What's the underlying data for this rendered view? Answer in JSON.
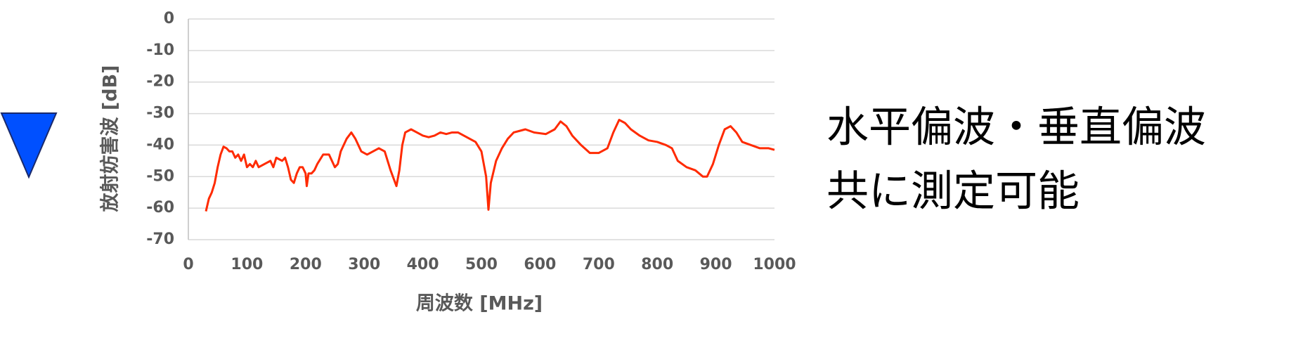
{
  "chart_data": {
    "type": "line",
    "xlabel": "周波数 [MHz]",
    "ylabel": "放射妨害波 [dB]",
    "xlim": [
      0,
      1000
    ],
    "xticks": [
      0,
      100,
      200,
      300,
      400,
      500,
      600,
      700,
      800,
      900,
      1000
    ],
    "ylim": [
      -70,
      0
    ],
    "yticks": [
      0,
      -10,
      -20,
      -30,
      -40,
      -50,
      -60,
      -70
    ],
    "grid": true,
    "annotations": [
      "水平偏波・垂直偏波",
      "共に測定可能"
    ],
    "series": [
      {
        "color": "#ff2a00",
        "x": [
          30,
          35,
          40,
          45,
          50,
          55,
          60,
          65,
          70,
          75,
          80,
          85,
          90,
          95,
          100,
          105,
          110,
          115,
          120,
          130,
          140,
          145,
          150,
          160,
          165,
          170,
          175,
          180,
          185,
          190,
          195,
          200,
          202,
          205,
          210,
          215,
          220,
          230,
          240,
          245,
          250,
          255,
          260,
          270,
          278,
          285,
          295,
          305,
          315,
          325,
          335,
          345,
          355,
          360,
          365,
          370,
          380,
          390,
          400,
          410,
          420,
          430,
          440,
          450,
          460,
          470,
          480,
          490,
          500,
          508,
          512,
          516,
          525,
          535,
          545,
          555,
          565,
          575,
          590,
          610,
          625,
          635,
          645,
          655,
          670,
          685,
          700,
          715,
          725,
          735,
          745,
          755,
          770,
          785,
          800,
          815,
          825,
          835,
          850,
          865,
          878,
          885,
          895,
          905,
          915,
          925,
          935,
          945,
          960,
          975,
          990,
          1000
        ],
        "values": [
          -61,
          -57,
          -55,
          -52,
          -47,
          -43,
          -40.5,
          -41,
          -42,
          -42,
          -44,
          -43,
          -45,
          -43,
          -47,
          -46,
          -47,
          -45,
          -47,
          -46,
          -45,
          -47,
          -44,
          -45,
          -44,
          -47,
          -51,
          -52,
          -49,
          -47,
          -47,
          -49,
          -53,
          -49,
          -49,
          -48,
          -46,
          -43,
          -43,
          -45,
          -47,
          -46,
          -42,
          -38,
          -36,
          -38,
          -42,
          -43,
          -42,
          -41,
          -42,
          -48,
          -53,
          -48,
          -40,
          -36,
          -35,
          -36,
          -37,
          -37.5,
          -37,
          -36,
          -36.5,
          -36,
          -36,
          -37,
          -38,
          -39,
          -42,
          -50,
          -60.5,
          -52,
          -45,
          -41,
          -38,
          -36,
          -35.5,
          -35,
          -36,
          -36.5,
          -35,
          -32.5,
          -34,
          -37,
          -40,
          -42.5,
          -42.5,
          -41,
          -36,
          -32,
          -33,
          -35,
          -37,
          -38.5,
          -39,
          -40,
          -41,
          -45,
          -47,
          -48,
          -50,
          -50,
          -46,
          -40,
          -35,
          -34,
          -36,
          -39,
          -40,
          -41,
          -41,
          -41.5
        ]
      }
    ]
  }
}
